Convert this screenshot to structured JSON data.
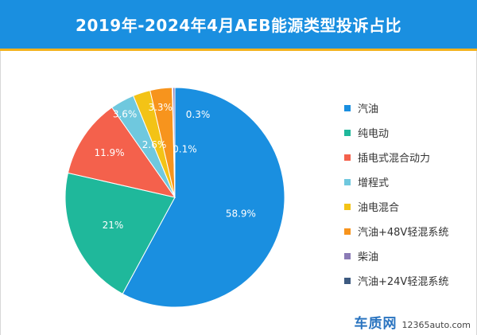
{
  "title": "2019年-2024年4月AEB能源类型投诉占比",
  "colors": {
    "title_bar": "#1a8fe0",
    "title_underline": "#f3b21c"
  },
  "watermark": {
    "logo_text": "车质网",
    "url_text": "12365auto.com"
  },
  "chart_data": {
    "type": "pie",
    "title": "2019年-2024年4月AEB能源类型投诉占比",
    "legend_position": "right",
    "slices": [
      {
        "label": "汽油",
        "value": 58.9,
        "display": "58.9%",
        "color": "#1a8fe0"
      },
      {
        "label": "纯电动",
        "value": 21,
        "display": "21%",
        "color": "#1fb89b"
      },
      {
        "label": "插电式混合动力",
        "value": 11.9,
        "display": "11.9%",
        "color": "#f4614c"
      },
      {
        "label": "增程式",
        "value": 3.6,
        "display": "3.6%",
        "color": "#6fc8de"
      },
      {
        "label": "油电混合",
        "value": 2.6,
        "display": "2.6%",
        "color": "#f3c316"
      },
      {
        "label": "汽油+48V轻混系统",
        "value": 3.3,
        "display": "3.3%",
        "color": "#f7941d"
      },
      {
        "label": "柴油",
        "value": 0.3,
        "display": "0.3%",
        "color": "#8b7bb6"
      },
      {
        "label": "汽油+24V轻混系统",
        "value": 0.1,
        "display": "0.1%",
        "color": "#3d5a80"
      }
    ]
  }
}
